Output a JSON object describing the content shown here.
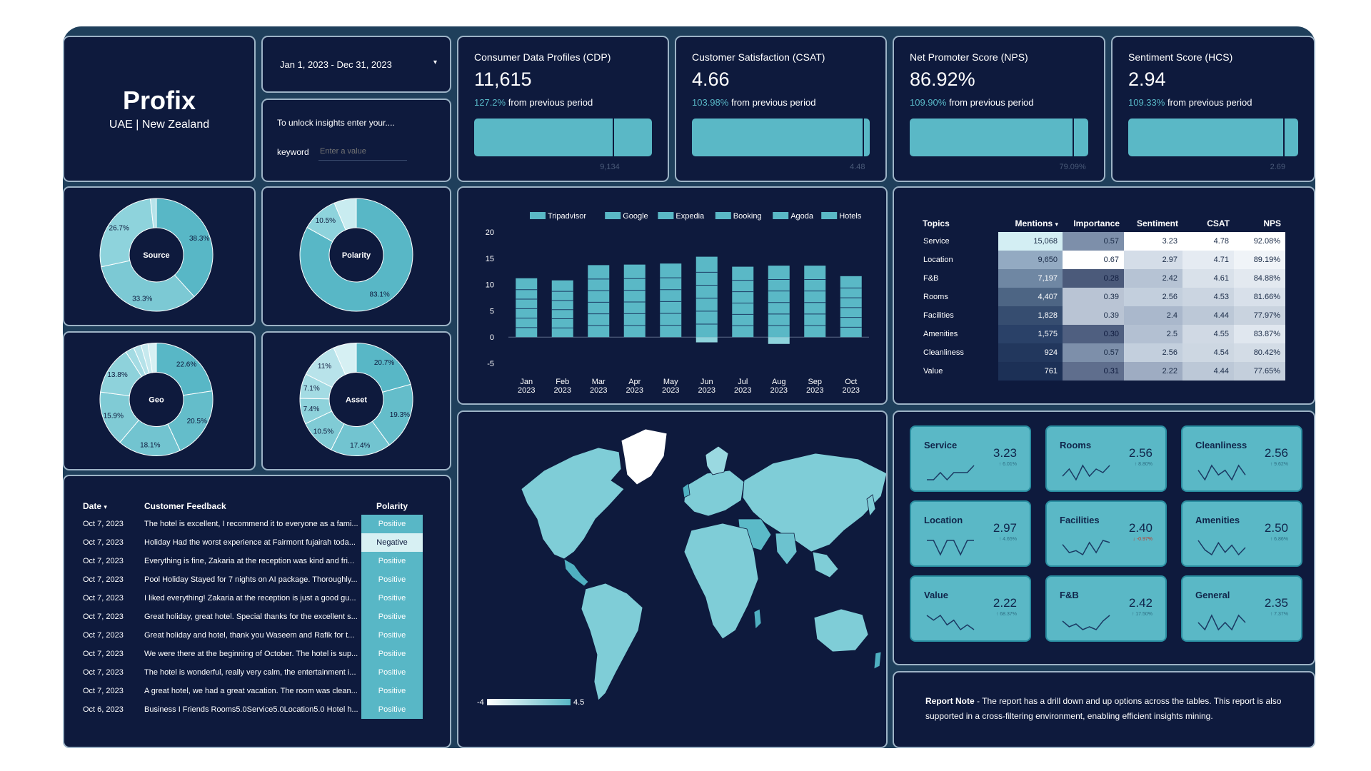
{
  "brand": {
    "name": "Profix",
    "subtitle": "UAE | New Zealand"
  },
  "date_range": {
    "value": "Jan 1, 2023 - Dec 31, 2023"
  },
  "keyword_panel": {
    "prompt": "To unlock insights enter your....",
    "label": "keyword",
    "placeholder": "Enter a value"
  },
  "kpis": [
    {
      "title": "Consumer Data Profiles (CDP)",
      "value": "11,615",
      "change_pct": "127.2%",
      "change_text": "from previous period",
      "target": "9,134",
      "fill": 1.0,
      "marker": 0.78
    },
    {
      "title": "Customer Satisfaction (CSAT)",
      "value": "4.66",
      "change_pct": "103.98%",
      "change_text": "from previous period",
      "target": "4.48",
      "fill": 1.0,
      "marker": 0.96
    },
    {
      "title": "Net Promoter Score (NPS)",
      "value": "86.92%",
      "change_pct": "109.90%",
      "change_text": "from previous period",
      "target": "79.09%",
      "fill": 1.0,
      "marker": 0.91
    },
    {
      "title": "Sentiment Score (HCS)",
      "value": "2.94",
      "change_pct": "109.33%",
      "change_text": "from previous period",
      "target": "2.69",
      "fill": 1.0,
      "marker": 0.91
    }
  ],
  "donuts": {
    "source": {
      "center": "Source",
      "slices": [
        {
          "value": 38.3,
          "label": "38.3%",
          "color": "#58b7c6"
        },
        {
          "value": 33.3,
          "label": "33.3%",
          "color": "#7cc9d4"
        },
        {
          "value": 26.7,
          "label": "26.7%",
          "color": "#8ed3dc"
        },
        {
          "value": 1.7,
          "label": "",
          "color": "#b6e3ea"
        }
      ]
    },
    "polarity": {
      "center": "Polarity",
      "slices": [
        {
          "value": 83.1,
          "label": "83.1%",
          "color": "#58b7c6"
        },
        {
          "value": 10.5,
          "label": "10.5%",
          "color": "#8ed3dc"
        },
        {
          "value": 6.4,
          "label": "",
          "color": "#c9ecf0"
        }
      ]
    },
    "geo": {
      "center": "Geo",
      "slices": [
        {
          "value": 22.6,
          "label": "22.6%",
          "color": "#58b7c6"
        },
        {
          "value": 20.5,
          "label": "20.5%",
          "color": "#64bdca"
        },
        {
          "value": 18.1,
          "label": "18.1%",
          "color": "#72c4d0"
        },
        {
          "value": 15.9,
          "label": "15.9%",
          "color": "#80cbd5"
        },
        {
          "value": 13.8,
          "label": "13.8%",
          "color": "#8ed2db"
        },
        {
          "value": 2.5,
          "label": "",
          "color": "#a3dbe3"
        },
        {
          "value": 2.2,
          "label": "",
          "color": "#b5e2e9"
        },
        {
          "value": 2.0,
          "label": "",
          "color": "#c6e9ee"
        },
        {
          "value": 2.4,
          "label": "",
          "color": "#d6f0f3"
        }
      ]
    },
    "asset": {
      "center": "Asset",
      "slices": [
        {
          "value": 20.7,
          "label": "20.7%",
          "color": "#58b7c6"
        },
        {
          "value": 19.3,
          "label": "19.3%",
          "color": "#64bdca"
        },
        {
          "value": 17.4,
          "label": "17.4%",
          "color": "#72c4d0"
        },
        {
          "value": 10.5,
          "label": "10.5%",
          "color": "#80cbd5"
        },
        {
          "value": 7.4,
          "label": "7.4%",
          "color": "#8ed2db"
        },
        {
          "value": 7.1,
          "label": "7.1%",
          "color": "#a3dbe3"
        },
        {
          "value": 11.0,
          "label": "11%",
          "color": "#b8e3ea"
        },
        {
          "value": 6.6,
          "label": "",
          "color": "#d6f0f3"
        }
      ]
    }
  },
  "chart_data": {
    "type": "bar",
    "stacked": true,
    "legend": [
      "Tripadvisor",
      "Google",
      "Expedia",
      "Booking",
      "Agoda",
      "Hotels"
    ],
    "legend_position": "top",
    "categories": [
      "Jan 2023",
      "Feb 2023",
      "Mar 2023",
      "Apr 2023",
      "May 2023",
      "Jun 2023",
      "Jul 2023",
      "Aug 2023",
      "Sep 2023",
      "Oct 2023"
    ],
    "totals": [
      11.2,
      10.8,
      13.7,
      13.8,
      14.0,
      15.3,
      13.4,
      13.6,
      13.6,
      11.6
    ],
    "negatives": [
      0,
      0,
      0,
      0,
      0,
      -1.0,
      0,
      -1.3,
      0,
      0
    ],
    "ylim": [
      -5,
      20
    ],
    "yticks": [
      20,
      15,
      10,
      5,
      0,
      -5
    ],
    "bar_color": "#5ab8c6"
  },
  "topics_table": {
    "headers": [
      "Topics",
      "Mentions",
      "Importance",
      "Sentiment",
      "CSAT",
      "NPS"
    ],
    "sort_indicator": "▾",
    "rows": [
      {
        "topic": "Service",
        "mentions": "15,068",
        "importance": "0.57",
        "sentiment": "3.23",
        "csat": "4.78",
        "nps": "92.08%"
      },
      {
        "topic": "Location",
        "mentions": "9,650",
        "importance": "0.67",
        "sentiment": "2.97",
        "csat": "4.71",
        "nps": "89.19%"
      },
      {
        "topic": "F&B",
        "mentions": "7,197",
        "importance": "0.28",
        "sentiment": "2.42",
        "csat": "4.61",
        "nps": "84.88%"
      },
      {
        "topic": "Rooms",
        "mentions": "4,407",
        "importance": "0.39",
        "sentiment": "2.56",
        "csat": "4.53",
        "nps": "81.66%"
      },
      {
        "topic": "Facilities",
        "mentions": "1,828",
        "importance": "0.39",
        "sentiment": "2.4",
        "csat": "4.44",
        "nps": "77.97%"
      },
      {
        "topic": "Amenities",
        "mentions": "1,575",
        "importance": "0.30",
        "sentiment": "2.5",
        "csat": "4.55",
        "nps": "83.87%"
      },
      {
        "topic": "Cleanliness",
        "mentions": "924",
        "importance": "0.57",
        "sentiment": "2.56",
        "csat": "4.54",
        "nps": "80.42%"
      },
      {
        "topic": "Value",
        "mentions": "761",
        "importance": "0.31",
        "sentiment": "2.22",
        "csat": "4.44",
        "nps": "77.65%"
      }
    ]
  },
  "feedback_table": {
    "headers": [
      "Date",
      "Customer Feedback",
      "Polarity"
    ],
    "sort_indicator": "▾",
    "rows": [
      {
        "date": "Oct 7, 2023",
        "text": "The hotel is excellent, I recommend it to everyone as a fami...",
        "polarity": "Positive"
      },
      {
        "date": "Oct 7, 2023",
        "text": "Holiday Had the worst experience at Fairmont fujairah toda...",
        "polarity": "Negative"
      },
      {
        "date": "Oct 7, 2023",
        "text": "Everything is fine, Zakaria at the reception was kind and fri...",
        "polarity": "Positive"
      },
      {
        "date": "Oct 7, 2023",
        "text": "Pool Holiday Stayed for 7 nights on AI package. Thoroughly...",
        "polarity": "Positive"
      },
      {
        "date": "Oct 7, 2023",
        "text": "I liked everything! Zakaria at the reception is just a good gu...",
        "polarity": "Positive"
      },
      {
        "date": "Oct 7, 2023",
        "text": "Great holiday, great hotel. Special thanks for the excellent s...",
        "polarity": "Positive"
      },
      {
        "date": "Oct 7, 2023",
        "text": "Great holiday and hotel, thank you Waseem and Rafik for t...",
        "polarity": "Positive"
      },
      {
        "date": "Oct 7, 2023",
        "text": "We were there at the beginning of October. The hotel is sup...",
        "polarity": "Positive"
      },
      {
        "date": "Oct 7, 2023",
        "text": "The hotel is wonderful, really very calm, the entertainment i...",
        "polarity": "Positive"
      },
      {
        "date": "Oct 7, 2023",
        "text": "A great hotel, we had a great vacation. The room was clean...",
        "polarity": "Positive"
      },
      {
        "date": "Oct 6, 2023",
        "text": "Business I Friends Rooms5.0Service5.0Location5.0 Hotel h...",
        "polarity": "Positive"
      }
    ]
  },
  "map": {
    "legend_min": "-4",
    "legend_max": "4.5"
  },
  "score_tiles": [
    {
      "label": "Service",
      "value": "3.23",
      "delta": "↑ 6.01%",
      "negative": false,
      "trend": [
        4,
        4,
        5,
        4,
        5,
        5,
        5,
        6
      ]
    },
    {
      "label": "Rooms",
      "value": "2.56",
      "delta": "↑ 8.80%",
      "negative": false,
      "trend": [
        3,
        5,
        2,
        6,
        3,
        5,
        4,
        6
      ]
    },
    {
      "label": "Cleanliness",
      "value": "2.56",
      "delta": "↑ 9.62%",
      "negative": false,
      "trend": [
        5,
        3,
        6,
        4,
        5,
        3,
        6,
        4
      ]
    },
    {
      "label": "Location",
      "value": "2.97",
      "delta": "↑ 4.65%",
      "negative": false,
      "trend": [
        5,
        5,
        4,
        5,
        5,
        4,
        5,
        5
      ]
    },
    {
      "label": "Facilities",
      "value": "2.40",
      "delta": "↓ -0.97%",
      "negative": true,
      "trend": [
        6,
        2,
        3,
        1,
        7,
        2,
        8,
        7
      ]
    },
    {
      "label": "Amenities",
      "value": "2.50",
      "delta": "↑ 6.86%",
      "negative": false,
      "trend": [
        7,
        3,
        1,
        6,
        2,
        5,
        1,
        4
      ]
    },
    {
      "label": "Value",
      "value": "2.22",
      "delta": "↑ 68.37%",
      "negative": false,
      "trend": [
        6,
        5,
        6,
        4,
        5,
        3,
        4,
        3
      ]
    },
    {
      "label": "F&B",
      "value": "2.42",
      "delta": "↑ 17.50%",
      "negative": false,
      "trend": [
        5,
        3,
        4,
        2,
        3,
        2,
        5,
        7
      ]
    },
    {
      "label": "General",
      "value": "2.35",
      "delta": "↑ 7.37%",
      "negative": false,
      "trend": [
        5,
        4,
        6,
        4,
        5,
        4,
        6,
        5
      ]
    }
  ],
  "report_note": {
    "title": "Report Note",
    "text": " - The report has a drill down and up options across the tables. This report is also supported in a cross-filtering environment, enabling efficient insights mining."
  }
}
